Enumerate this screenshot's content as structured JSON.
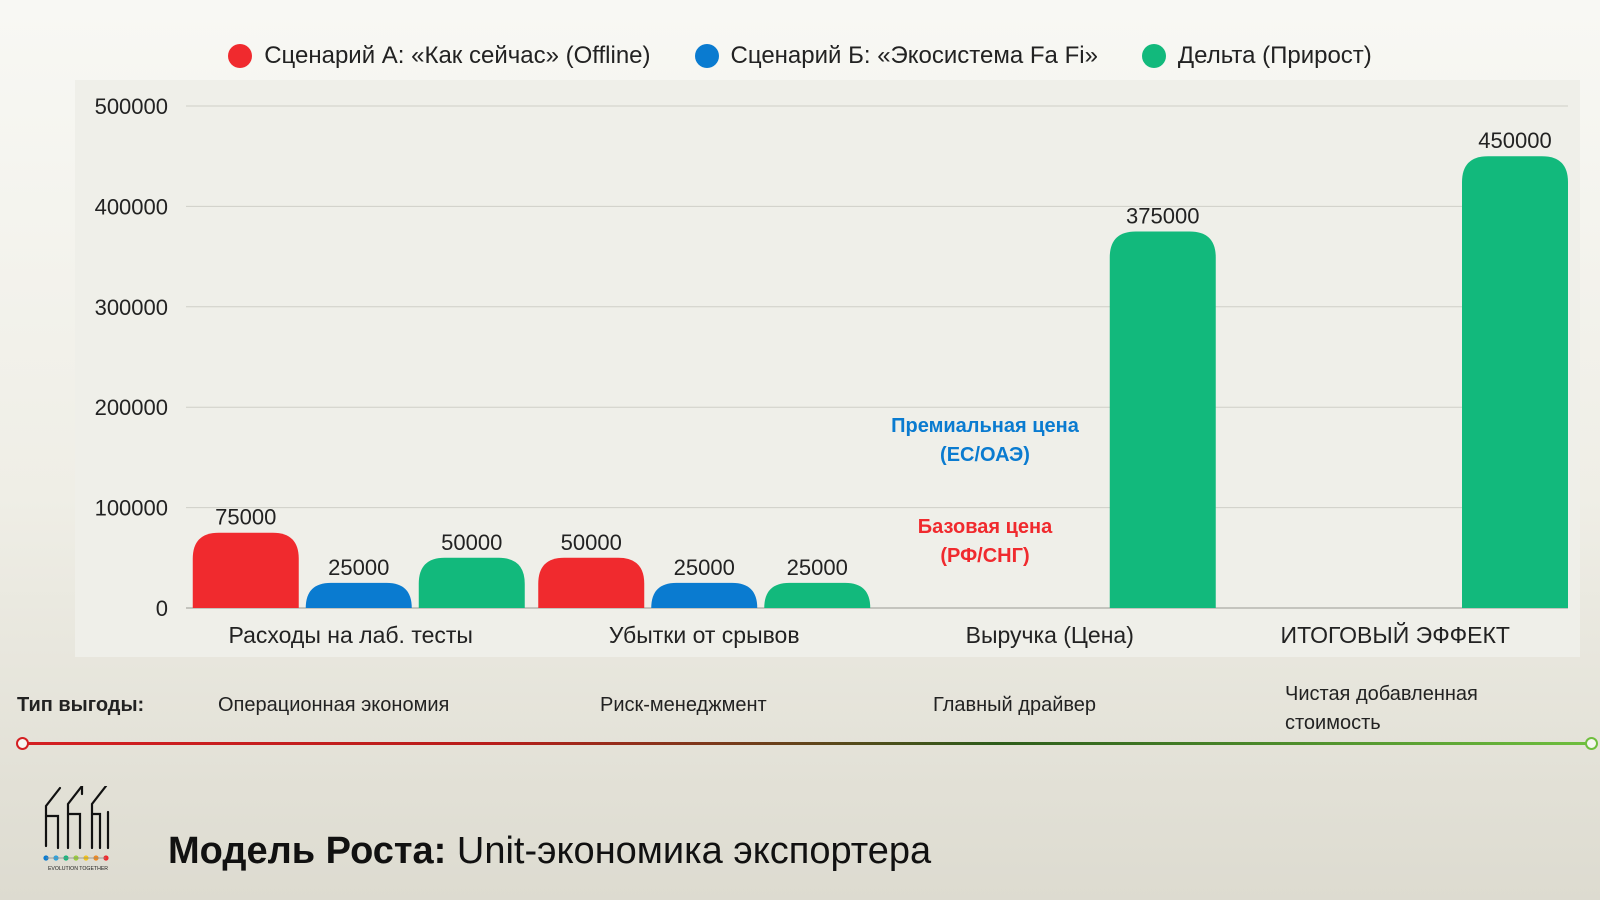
{
  "legend": {
    "items": [
      {
        "label": "Сценарий А: «Как сейчас» (Offline)",
        "color": "#f02a2e"
      },
      {
        "label": "Сценарий Б: «Экосистема Fa Fi»",
        "color": "#0a7bd0"
      },
      {
        "label": "Дельта (Прирост)",
        "color": "#12b97c"
      }
    ]
  },
  "chart_data": {
    "type": "bar",
    "categories": [
      "Расходы на лаб. тесты",
      "Убытки от срывов",
      "Выручка (Цена)",
      "ИТОГОВЫЙ ЭФФЕКТ"
    ],
    "series": [
      {
        "name": "Сценарий А: «Как сейчас» (Offline)",
        "color": "#f02a2e",
        "values": [
          75000,
          50000,
          null,
          null
        ]
      },
      {
        "name": "Сценарий Б: «Экосистема Fa Fi»",
        "color": "#0a7bd0",
        "values": [
          25000,
          25000,
          null,
          null
        ]
      },
      {
        "name": "Дельта (Прирост)",
        "color": "#12b97c",
        "values": [
          50000,
          25000,
          375000,
          450000
        ]
      }
    ],
    "yticks": [
      "0",
      "100000",
      "200000",
      "300000",
      "400000",
      "500000"
    ],
    "ylim": [
      0,
      500000
    ],
    "grid": true,
    "legend_position": "top",
    "data_labels": true
  },
  "annotations": {
    "premium": {
      "line1": "Премиальная цена",
      "line2": "(ЕС/ОАЭ)",
      "color": "#0a7bd0"
    },
    "base": {
      "line1": "Базовая цена",
      "line2": "(РФ/СНГ)",
      "color": "#f02a2e"
    }
  },
  "benefits": {
    "label": "Тип выгоды:",
    "items": [
      "Операционная экономия",
      "Риск-менеджмент",
      "Главный драйвер",
      "Чистая добавленная стоимость"
    ]
  },
  "logo": {
    "text": "EVOLUTION TOGETHER"
  },
  "footer": {
    "title_bold": "Модель Роста:",
    "title_rest": " Unit-экономика экспортера"
  }
}
